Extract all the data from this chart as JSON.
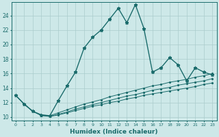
{
  "xlabel": "Humidex (Indice chaleur)",
  "background_color": "#cde8e8",
  "grid_color": "#aacccc",
  "line_color": "#1a6b6b",
  "x_ticks": [
    0,
    1,
    2,
    3,
    4,
    5,
    6,
    7,
    8,
    9,
    10,
    11,
    12,
    13,
    14,
    15,
    16,
    17,
    18,
    19,
    20,
    21,
    22,
    23
  ],
  "yticks": [
    10,
    12,
    14,
    16,
    18,
    20,
    22,
    24
  ],
  "ylim": [
    9.5,
    25.8
  ],
  "xlim": [
    -0.5,
    23.5
  ],
  "series": [
    {
      "x": [
        0,
        1,
        2,
        3,
        4,
        5,
        6,
        7,
        8,
        9,
        10,
        11,
        12,
        13,
        14,
        15,
        16,
        17,
        18,
        19,
        20,
        21,
        22,
        23
      ],
      "y": [
        13,
        11.8,
        10.8,
        10.3,
        10.2,
        12.3,
        14.3,
        16.2,
        19.5,
        21.0,
        22.0,
        23.5,
        25.0,
        23.0,
        25.5,
        22.2,
        16.2,
        16.8,
        18.2,
        17.2,
        15.0,
        16.8,
        16.2,
        15.8
      ],
      "marker": "*",
      "linestyle": "-",
      "linewidth": 1.0,
      "markersize": 3.5
    },
    {
      "x": [
        0,
        1,
        2,
        3,
        4,
        5,
        6,
        7,
        8,
        9,
        10,
        11,
        12,
        13,
        14,
        15,
        16,
        17,
        18,
        19,
        20,
        21,
        22,
        23
      ],
      "y": [
        13,
        11.8,
        10.8,
        10.3,
        10.2,
        10.6,
        11.0,
        11.4,
        11.8,
        12.1,
        12.4,
        12.8,
        13.1,
        13.4,
        13.7,
        14.0,
        14.3,
        14.5,
        14.8,
        15.0,
        15.2,
        15.5,
        15.7,
        16.0
      ],
      "marker": ".",
      "linestyle": "-",
      "linewidth": 0.7,
      "markersize": 2.5
    },
    {
      "x": [
        0,
        1,
        2,
        3,
        4,
        5,
        6,
        7,
        8,
        9,
        10,
        11,
        12,
        13,
        14,
        15,
        16,
        17,
        18,
        19,
        20,
        21,
        22,
        23
      ],
      "y": [
        13,
        11.8,
        10.8,
        10.3,
        10.1,
        10.4,
        10.7,
        11.1,
        11.4,
        11.7,
        12.0,
        12.3,
        12.6,
        12.9,
        13.1,
        13.4,
        13.7,
        13.9,
        14.1,
        14.4,
        14.6,
        14.8,
        15.0,
        15.3
      ],
      "marker": ".",
      "linestyle": "-",
      "linewidth": 0.7,
      "markersize": 2.5
    },
    {
      "x": [
        0,
        1,
        2,
        3,
        4,
        5,
        6,
        7,
        8,
        9,
        10,
        11,
        12,
        13,
        14,
        15,
        16,
        17,
        18,
        19,
        20,
        21,
        22,
        23
      ],
      "y": [
        13,
        11.8,
        10.8,
        10.2,
        10.1,
        10.3,
        10.6,
        10.9,
        11.2,
        11.5,
        11.7,
        12.0,
        12.2,
        12.5,
        12.7,
        13.0,
        13.2,
        13.4,
        13.6,
        13.8,
        14.0,
        14.2,
        14.5,
        14.7
      ],
      "marker": ".",
      "linestyle": "-",
      "linewidth": 0.7,
      "markersize": 2.5
    }
  ]
}
